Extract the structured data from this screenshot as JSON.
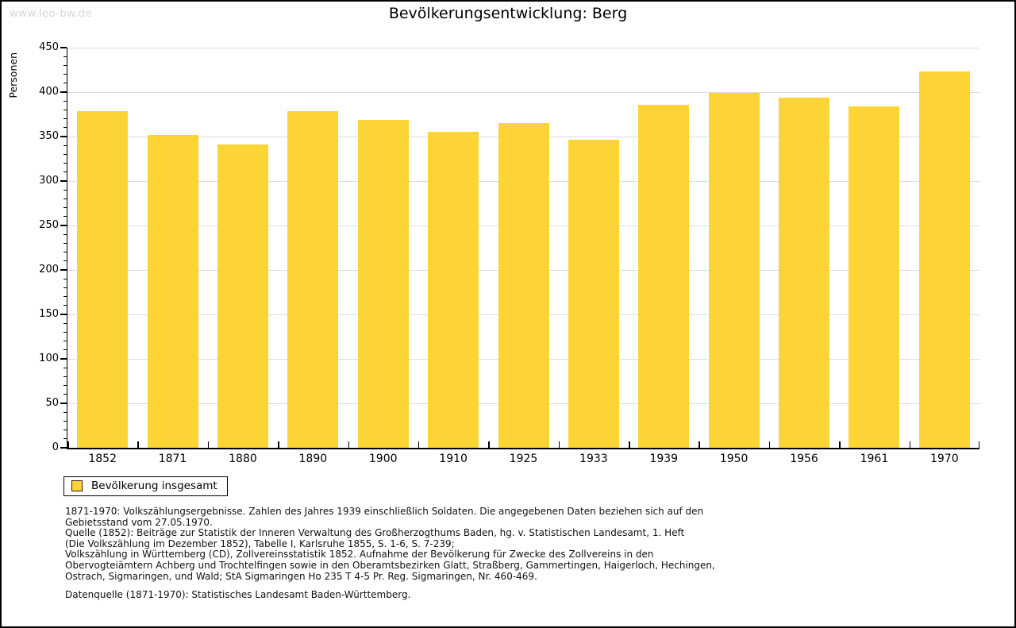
{
  "watermark": {
    "text": "www.leo-bw.de"
  },
  "title": "Bevölkerungsentwicklung: Berg",
  "chart_data": {
    "type": "bar",
    "title": "Bevölkerungsentwicklung: Berg",
    "xlabel": "",
    "ylabel": "Personen",
    "categories": [
      "1852",
      "1871",
      "1880",
      "1890",
      "1900",
      "1910",
      "1925",
      "1933",
      "1939",
      "1950",
      "1956",
      "1961",
      "1970"
    ],
    "values": [
      379,
      352,
      341,
      379,
      369,
      355,
      365,
      346,
      386,
      399,
      394,
      384,
      423
    ],
    "series_name": "Bevölkerung insgesamt",
    "ylim": [
      0,
      450
    ],
    "ytick_step": 50,
    "yminor_step": 10,
    "grid": true,
    "legend_position": "bottom-left",
    "bar_color": "#FDD435"
  },
  "legend": {
    "label": "Bevölkerung insgesamt",
    "swatch_color": "#FDD435"
  },
  "footer": {
    "lines": [
      "1871-1970: Volkszählungsergebnisse. Zahlen des Jahres 1939 einschließlich Soldaten. Die angegebenen Daten beziehen sich auf den",
      "Gebietsstand vom 27.05.1970.",
      "Quelle (1852): Beiträge zur Statistik der Inneren Verwaltung des Großherzogthums Baden, hg. v. Statistischen Landesamt, 1. Heft",
      "(Die Volkszählung im Dezember 1852), Tabelle I, Karlsruhe 1855, S. 1-6, S. 7-239;",
      "Volkszählung in Württemberg (CD), Zollvereinsstatistik 1852. Aufnahme der Bevölkerung für Zwecke des Zollvereins in den",
      "Obervogteiämtern Achberg und Trochtelfingen sowie in den Oberamtsbezirken Glatt, Straßberg, Gammertingen, Haigerloch, Hechingen,",
      "Ostrach, Sigmaringen, und Wald; StA Sigmaringen Ho 235 T 4-5 Pr. Reg. Sigmaringen, Nr. 460-469."
    ],
    "datasource": "Datenquelle (1871-1970): Statistisches Landesamt Baden-Württemberg."
  },
  "colors": {
    "bar": "#FDD435",
    "grid": "#dcdcdc",
    "axis": "#000000",
    "watermark": "#d6d6d6"
  }
}
